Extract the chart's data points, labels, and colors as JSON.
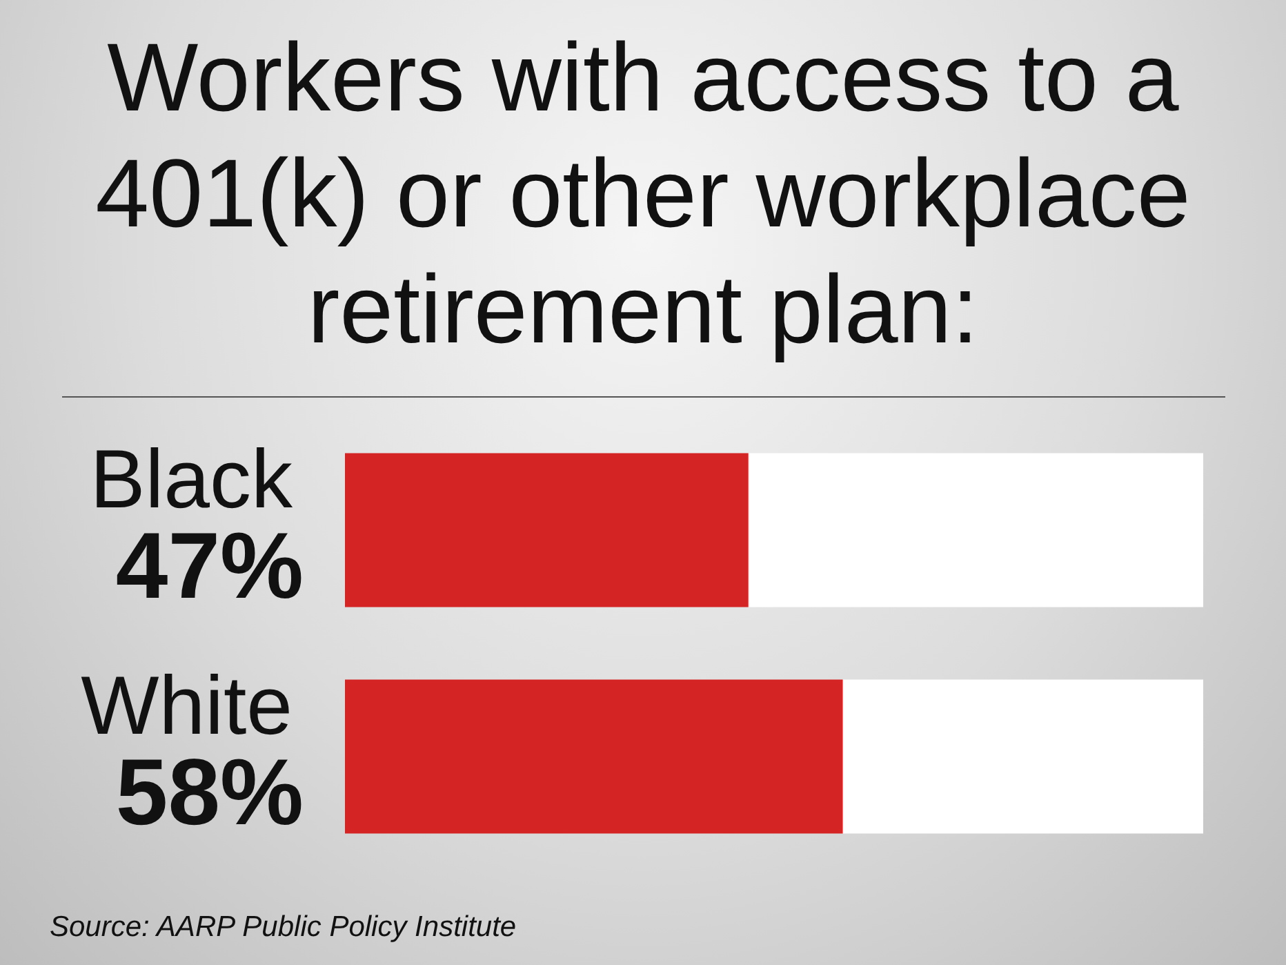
{
  "chart_data": {
    "type": "bar",
    "title": "Workers with access to a 401(k) or other workplace retirement plan:",
    "categories": [
      "Black",
      "White"
    ],
    "orientation": "horizontal",
    "stacked": true,
    "series": [
      {
        "color": "#d42424",
        "values": [
          47,
          58
        ],
        "value_labels": [
          "47%",
          "58%"
        ]
      },
      {
        "color": "#ffffff",
        "values": [
          53,
          42
        ]
      }
    ],
    "xlim": [
      0,
      100
    ],
    "tick_labels": "y",
    "annotations": [
      "Source: AARP Public Policy Institute"
    ]
  }
}
